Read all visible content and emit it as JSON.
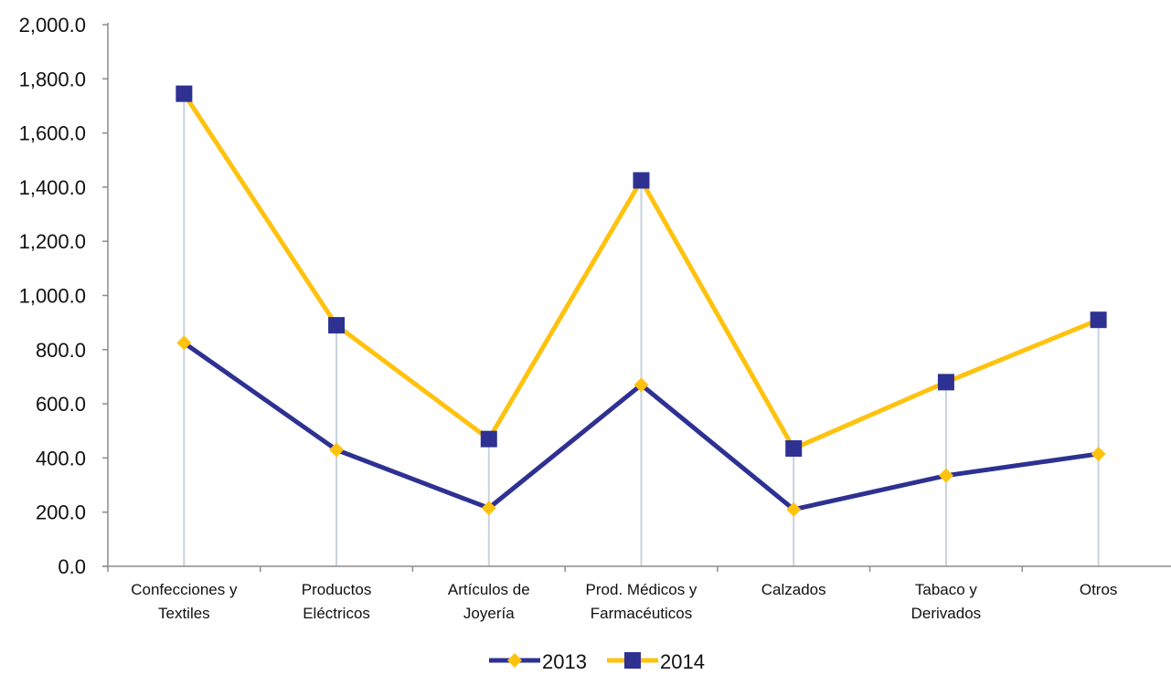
{
  "chart_data": {
    "type": "line",
    "categories": [
      [
        "Confecciones y",
        "Textiles"
      ],
      [
        "Productos",
        "Eléctricos"
      ],
      [
        "Artículos de",
        "Joyería"
      ],
      [
        "Prod. Médicos y",
        "Farmacéuticos"
      ],
      [
        "Calzados"
      ],
      [
        "Tabaco y",
        "Derivados"
      ],
      [
        "Otros"
      ]
    ],
    "series": [
      {
        "name": "2013",
        "color": "#2e3192",
        "marker": "diamond",
        "marker_color": "#ffc20e",
        "values": [
          825,
          430,
          215,
          670,
          210,
          335,
          415
        ]
      },
      {
        "name": "2014",
        "color": "#ffc20e",
        "marker": "square",
        "marker_color": "#2e3192",
        "values": [
          1745,
          890,
          470,
          1425,
          435,
          680,
          910
        ]
      }
    ],
    "ylim": [
      0,
      2000
    ],
    "yticks": [
      "0.0",
      "200.0",
      "400.0",
      "600.0",
      "800.0",
      "1,000.0",
      "1,200.0",
      "1,400.0",
      "1,600.0",
      "1,800.0",
      "2,000.0"
    ],
    "drop_lines": true,
    "grid": false,
    "legend_position": "bottom",
    "title": "",
    "xlabel": "",
    "ylabel": ""
  }
}
